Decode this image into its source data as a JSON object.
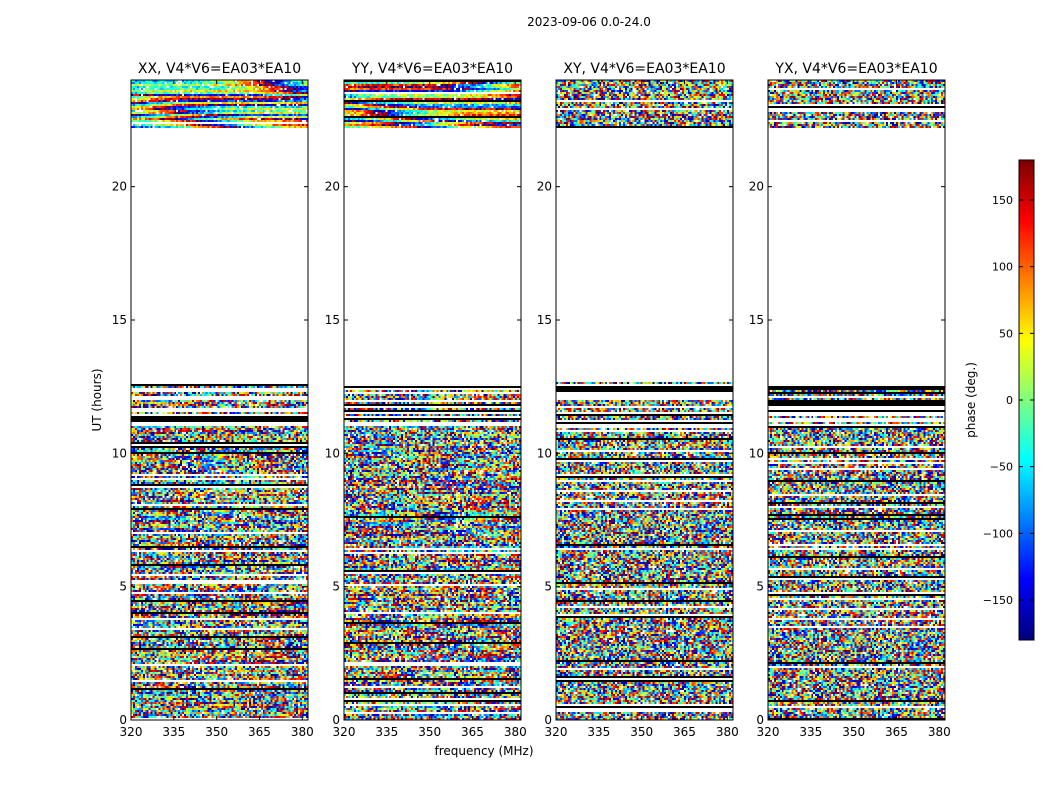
{
  "figure_title": "2023-09-06 0.0-24.0",
  "chart_data": {
    "type": "heatmap",
    "xlabel": "frequency (MHz)",
    "ylabel": "UT (hours)",
    "xlim": [
      320,
      382
    ],
    "ylim": [
      0,
      24
    ],
    "x_ticks": [
      320,
      335,
      350,
      365,
      380
    ],
    "y_ticks": [
      0,
      5,
      10,
      15,
      20
    ],
    "colorbar": {
      "label": "phase (deg.)",
      "range": [
        -180,
        180
      ],
      "ticks": [
        150,
        100,
        50,
        0,
        -50,
        -100,
        -150
      ],
      "colormap": "jet"
    },
    "panels": [
      {
        "title": "XX, V4*V6=EA03*EA10",
        "pol": "XX",
        "pattern": "parallel"
      },
      {
        "title": "YY, V4*V6=EA03*EA10",
        "pol": "YY",
        "pattern": "parallel"
      },
      {
        "title": "XY, V4*V6=EA03*EA10",
        "pol": "XY",
        "pattern": "cross"
      },
      {
        "title": "YX, V4*V6=EA03*EA10",
        "pol": "YX",
        "pattern": "cross"
      }
    ],
    "data_ranges_ut": [
      [
        0,
        12.7
      ],
      [
        22.2,
        24
      ]
    ],
    "gap_ut": [
      12.7,
      22.2
    ]
  }
}
